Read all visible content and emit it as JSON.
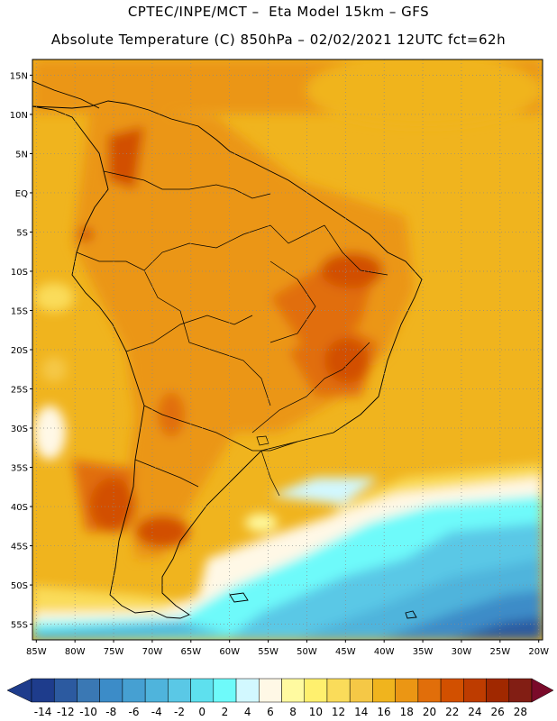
{
  "header": {
    "line1": "CPTEC/INPE/MCT –  Eta Model 15km – GFS",
    "line2": "Absolute Temperature (C) 850hPa – 02/02/2021 12UTC fct=62h"
  },
  "map": {
    "lat_labels": [
      "15N",
      "10N",
      "5N",
      "EQ",
      "5S",
      "10S",
      "15S",
      "20S",
      "25S",
      "30S",
      "35S",
      "40S",
      "45S",
      "50S",
      "55S"
    ],
    "lat_values": [
      15,
      10,
      5,
      0,
      -5,
      -10,
      -15,
      -20,
      -25,
      -30,
      -35,
      -40,
      -45,
      -50,
      -55
    ],
    "lon_labels": [
      "85W",
      "80W",
      "75W",
      "70W",
      "65W",
      "60W",
      "55W",
      "50W",
      "45W",
      "40W",
      "35W",
      "30W",
      "25W",
      "20W"
    ],
    "lon_values": [
      -85,
      -80,
      -75,
      -70,
      -65,
      -60,
      -55,
      -50,
      -45,
      -40,
      -35,
      -30,
      -25,
      -20
    ],
    "extent": {
      "lon_min": -85.5,
      "lon_max": -19.5,
      "lat_min": -57,
      "lat_max": 17
    }
  },
  "colorbar": {
    "labels": [
      "-14",
      "-12",
      "-10",
      "-8",
      "-6",
      "-4",
      "-2",
      "0",
      "2",
      "4",
      "6",
      "8",
      "10",
      "12",
      "14",
      "16",
      "18",
      "20",
      "22",
      "24",
      "26",
      "28"
    ],
    "colors": [
      "#1e3c8c",
      "#2c5aa0",
      "#3a78b4",
      "#3c8cc8",
      "#46a0d2",
      "#4fb4dc",
      "#5ac8e6",
      "#5ee0ee",
      "#6efafa",
      "#d2f8ff",
      "#fff8e6",
      "#fffaa0",
      "#fff06e",
      "#fadc5a",
      "#f5c846",
      "#f0b41e",
      "#eb9614",
      "#e16e0a",
      "#d25000",
      "#be3c00",
      "#a02800",
      "#821e14"
    ],
    "under_color": "#1e3c8c",
    "over_color": "#7a0a2a"
  }
}
